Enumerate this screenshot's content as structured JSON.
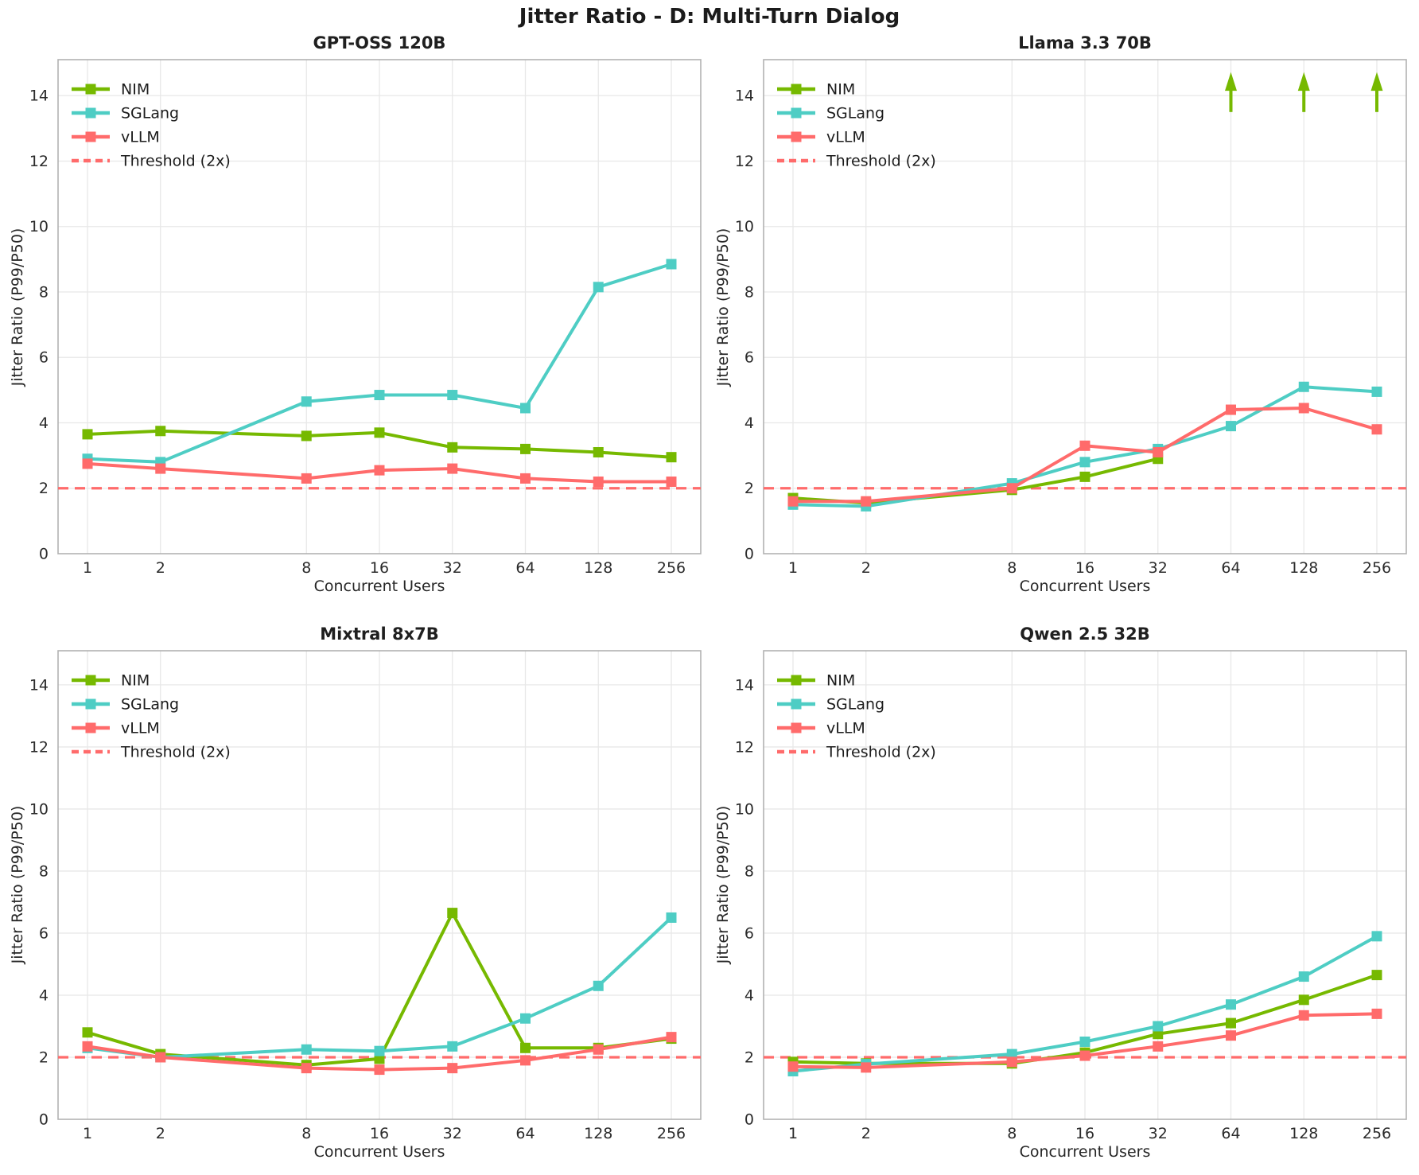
{
  "page": {
    "title": "Jitter Ratio - D: Multi-Turn Dialog"
  },
  "colors": {
    "nim": "#76b900",
    "sglang": "#4ecdc4",
    "vllm": "#ff6b6b",
    "threshold": "#ff6b6b",
    "grid": "#e8e8e8",
    "spine": "#b2b2b2",
    "tick_text": "#2b2b2b",
    "label_text": "#262626",
    "title_text": "#1b1b1b",
    "background": "#ffffff"
  },
  "chart_data": [
    {
      "type": "line",
      "title": "GPT-OSS 120B",
      "xlabel": "Concurrent Users",
      "ylabel": "Jitter Ratio (P99/P50)",
      "x_scale": "log2",
      "x": [
        1,
        2,
        8,
        16,
        32,
        64,
        128,
        256
      ],
      "ylim": [
        0,
        15.1
      ],
      "yticks": [
        0,
        2,
        4,
        6,
        8,
        10,
        12,
        14
      ],
      "grid": true,
      "legend_position": "upper-left",
      "threshold": {
        "label": "Threshold (2x)",
        "value": 2
      },
      "series": [
        {
          "name": "NIM",
          "color": "#76b900",
          "values": [
            3.65,
            3.75,
            3.6,
            3.7,
            3.25,
            3.2,
            3.1,
            2.95
          ]
        },
        {
          "name": "SGLang",
          "color": "#4ecdc4",
          "values": [
            2.9,
            2.8,
            4.65,
            4.85,
            4.85,
            4.45,
            8.15,
            8.85
          ]
        },
        {
          "name": "vLLM",
          "color": "#ff6b6b",
          "values": [
            2.75,
            2.6,
            2.3,
            2.55,
            2.6,
            2.3,
            2.2,
            2.2
          ]
        }
      ]
    },
    {
      "type": "line",
      "title": "Llama 3.3 70B",
      "xlabel": "Concurrent Users",
      "ylabel": "Jitter Ratio (P99/P50)",
      "x_scale": "log2",
      "x": [
        1,
        2,
        8,
        16,
        32,
        64,
        128,
        256
      ],
      "ylim": [
        0,
        15.1
      ],
      "yticks": [
        0,
        2,
        4,
        6,
        8,
        10,
        12,
        14
      ],
      "grid": true,
      "legend_position": "upper-left",
      "threshold": {
        "label": "Threshold (2x)",
        "value": 2
      },
      "series": [
        {
          "name": "NIM",
          "color": "#76b900",
          "values": [
            1.7,
            1.55,
            1.95,
            2.35,
            2.9,
            null,
            null,
            null
          ]
        },
        {
          "name": "SGLang",
          "color": "#4ecdc4",
          "values": [
            1.5,
            1.45,
            2.15,
            2.8,
            3.2,
            3.9,
            5.1,
            4.95
          ]
        },
        {
          "name": "vLLM",
          "color": "#ff6b6b",
          "values": [
            1.6,
            1.6,
            2.0,
            3.3,
            3.1,
            4.4,
            4.45,
            3.8
          ]
        }
      ],
      "offscale_arrows": {
        "series": "NIM",
        "x": [
          64,
          128,
          256
        ],
        "note": "values above axis range"
      }
    },
    {
      "type": "line",
      "title": "Mixtral 8x7B",
      "xlabel": "Concurrent Users",
      "ylabel": "Jitter Ratio (P99/P50)",
      "x_scale": "log2",
      "x": [
        1,
        2,
        8,
        16,
        32,
        64,
        128,
        256
      ],
      "ylim": [
        0,
        15.1
      ],
      "yticks": [
        0,
        2,
        4,
        6,
        8,
        10,
        12,
        14
      ],
      "grid": true,
      "legend_position": "upper-left",
      "threshold": {
        "label": "Threshold (2x)",
        "value": 2
      },
      "series": [
        {
          "name": "NIM",
          "color": "#76b900",
          "values": [
            2.8,
            2.1,
            1.75,
            1.95,
            6.65,
            2.3,
            2.3,
            2.6
          ]
        },
        {
          "name": "SGLang",
          "color": "#4ecdc4",
          "values": [
            2.3,
            2.0,
            2.25,
            2.2,
            2.35,
            3.25,
            4.3,
            6.5
          ]
        },
        {
          "name": "vLLM",
          "color": "#ff6b6b",
          "values": [
            2.35,
            2.0,
            1.65,
            1.6,
            1.65,
            1.9,
            2.25,
            2.65
          ]
        }
      ]
    },
    {
      "type": "line",
      "title": "Qwen 2.5 32B",
      "xlabel": "Concurrent Users",
      "ylabel": "Jitter Ratio (P99/P50)",
      "x_scale": "log2",
      "x": [
        1,
        2,
        8,
        16,
        32,
        64,
        128,
        256
      ],
      "ylim": [
        0,
        15.1
      ],
      "yticks": [
        0,
        2,
        4,
        6,
        8,
        10,
        12,
        14
      ],
      "grid": true,
      "legend_position": "upper-left",
      "threshold": {
        "label": "Threshold (2x)",
        "value": 2
      },
      "series": [
        {
          "name": "NIM",
          "color": "#76b900",
          "values": [
            1.85,
            1.8,
            1.8,
            2.15,
            2.75,
            3.1,
            3.85,
            4.65
          ]
        },
        {
          "name": "SGLang",
          "color": "#4ecdc4",
          "values": [
            1.55,
            1.78,
            2.1,
            2.5,
            3.0,
            3.7,
            4.6,
            5.9
          ]
        },
        {
          "name": "vLLM",
          "color": "#ff6b6b",
          "values": [
            1.7,
            1.67,
            1.85,
            2.05,
            2.35,
            2.7,
            3.35,
            3.4
          ]
        }
      ]
    }
  ]
}
